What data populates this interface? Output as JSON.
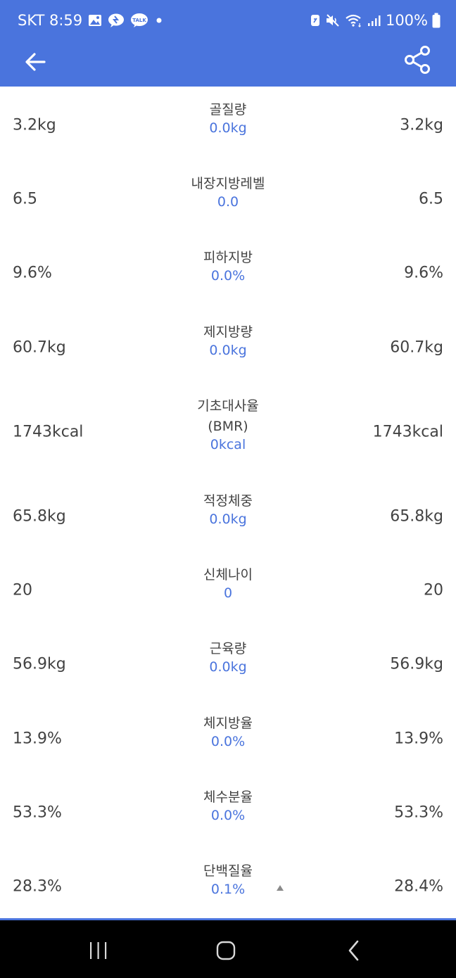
{
  "status_bar": {
    "carrier_time": "SKT 8:59",
    "battery": "100%",
    "talk_badge": "TALK",
    "bg_color": "#4a74dd"
  },
  "toolbar": {
    "back_icon": "arrow-left-icon",
    "share_icon": "share-icon",
    "bg_color": "#4a74dd"
  },
  "accent_color": "#4a74dd",
  "rows": [
    {
      "label": "골질량",
      "left": "3.2kg",
      "diff": "0.0kg",
      "right": "3.2kg"
    },
    {
      "label": "내장지방레벨",
      "left": "6.5",
      "diff": "0.0",
      "right": "6.5"
    },
    {
      "label": "피하지방",
      "left": "9.6%",
      "diff": "0.0%",
      "right": "9.6%"
    },
    {
      "label": "제지방량",
      "left": "60.7kg",
      "diff": "0.0kg",
      "right": "60.7kg"
    },
    {
      "label": "기초대사율\n(BMR)",
      "left": "1743kcal",
      "diff": "0kcal",
      "right": "1743kcal"
    },
    {
      "label": "적정체중",
      "left": "65.8kg",
      "diff": "0.0kg",
      "right": "65.8kg"
    },
    {
      "label": "신체나이",
      "left": "20",
      "diff": "0",
      "right": "20"
    },
    {
      "label": "근육량",
      "left": "56.9kg",
      "diff": "0.0kg",
      "right": "56.9kg"
    },
    {
      "label": "체지방율",
      "left": "13.9%",
      "diff": "0.0%",
      "right": "13.9%"
    },
    {
      "label": "체수분율",
      "left": "53.3%",
      "diff": "0.0%",
      "right": "53.3%"
    },
    {
      "label": "단백질율",
      "left": "28.3%",
      "diff": "0.1%",
      "right": "28.4%",
      "trend": "up-arrow-icon"
    }
  ],
  "nav_bar": {
    "recent_icon": "recent-apps-icon",
    "home_icon": "home-icon",
    "back_icon": "nav-back-icon"
  }
}
